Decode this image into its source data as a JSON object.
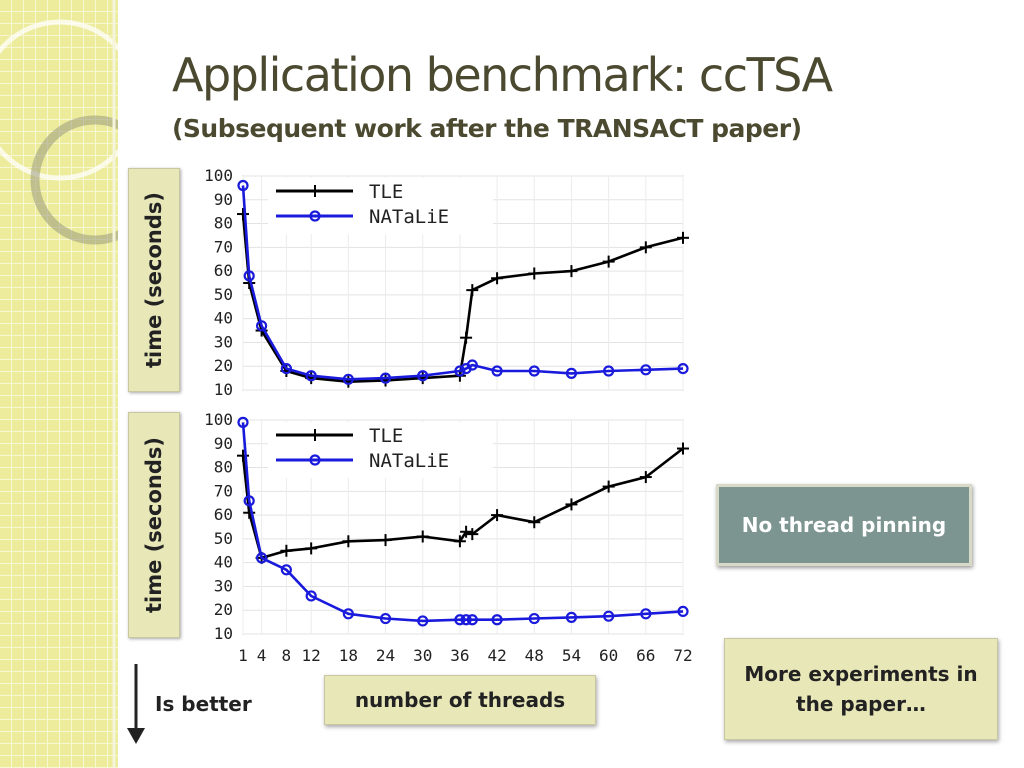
{
  "slide": {
    "title": "Application benchmark: ccTSA",
    "subtitle": "(Subsequent work after the TRANSACT paper)",
    "ylabel": "time (seconds)",
    "xlabel": "number of threads",
    "callout_pinning": "No thread pinning",
    "callout_more": "More experiments in the paper…",
    "better_label": "Is better"
  },
  "colors": {
    "tle": "#000000",
    "natalie": "#1a1adc",
    "accent": "#7d9590",
    "box_fill": "#e8e7b8",
    "text": "#4b4a30"
  },
  "icons": {
    "arrow": "down-arrow-icon"
  },
  "chart_data": [
    {
      "type": "line",
      "title": "",
      "xlabel": "number of threads",
      "ylabel": "time (seconds)",
      "ylim": [
        10,
        100
      ],
      "yticks": [
        10,
        20,
        30,
        40,
        50,
        60,
        70,
        80,
        90,
        100
      ],
      "xlim": [
        1,
        72
      ],
      "xticks": [],
      "grid": true,
      "legend": "top-left",
      "series": [
        {
          "name": "TLE",
          "marker": "plus",
          "x": [
            1,
            2,
            4,
            8,
            12,
            18,
            24,
            30,
            36,
            37,
            38,
            42,
            48,
            54,
            60,
            66,
            72
          ],
          "y": [
            84,
            55,
            35,
            18,
            15,
            13.5,
            14,
            15,
            16,
            32,
            52,
            57,
            59,
            60,
            64,
            70,
            74
          ]
        },
        {
          "name": "NATaLiE",
          "marker": "circle",
          "x": [
            1,
            2,
            4,
            8,
            12,
            18,
            24,
            30,
            36,
            37,
            38,
            42,
            48,
            54,
            60,
            66,
            72
          ],
          "y": [
            96,
            58,
            37,
            19,
            16,
            14.5,
            15,
            16,
            18,
            19,
            20.5,
            18,
            18,
            17,
            18,
            18.5,
            19
          ]
        }
      ]
    },
    {
      "type": "line",
      "title": "",
      "xlabel": "number of threads",
      "ylabel": "time (seconds)",
      "ylim": [
        10,
        100
      ],
      "yticks": [
        10,
        20,
        30,
        40,
        50,
        60,
        70,
        80,
        90,
        100
      ],
      "xlim": [
        1,
        72
      ],
      "xticks": [
        1,
        4,
        8,
        12,
        18,
        24,
        30,
        36,
        42,
        48,
        54,
        60,
        66,
        72
      ],
      "grid": true,
      "legend": "top-left",
      "series": [
        {
          "name": "TLE",
          "marker": "plus",
          "x": [
            1,
            2,
            4,
            8,
            12,
            18,
            24,
            30,
            36,
            37,
            38,
            42,
            48,
            54,
            60,
            66,
            72
          ],
          "y": [
            85,
            61,
            42,
            45,
            46,
            49,
            49.5,
            51,
            49,
            53,
            52,
            60,
            57,
            64.5,
            72,
            76,
            88
          ]
        },
        {
          "name": "NATaLiE",
          "marker": "circle",
          "x": [
            1,
            2,
            4,
            8,
            12,
            18,
            24,
            30,
            36,
            37,
            38,
            42,
            48,
            54,
            60,
            66,
            72
          ],
          "y": [
            99,
            66,
            42,
            37,
            26,
            18.5,
            16.5,
            15.5,
            16,
            16,
            16,
            16,
            16.5,
            17,
            17.5,
            18.5,
            19.5
          ]
        }
      ]
    }
  ]
}
